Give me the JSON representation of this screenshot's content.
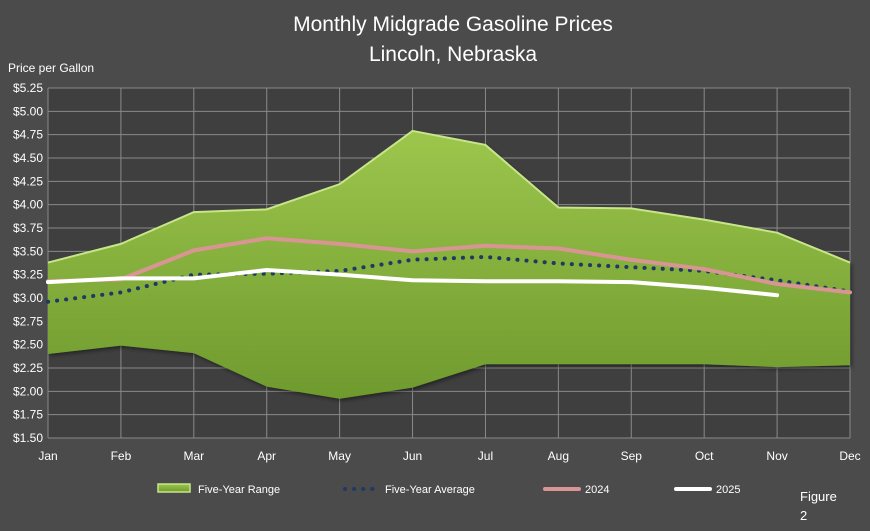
{
  "chart_data": {
    "type": "area",
    "title": "Monthly Midgrade Gasoline Prices",
    "subtitle": "Lincoln, Nebraska",
    "ylabel": "Price per Gallon",
    "xlabel": "",
    "ylim": [
      1.5,
      5.25
    ],
    "y_ticks": [
      "$1.50",
      "$1.75",
      "$2.00",
      "$2.25",
      "$2.50",
      "$2.75",
      "$3.00",
      "$3.25",
      "$3.50",
      "$3.75",
      "$4.00",
      "$4.25",
      "$4.50",
      "$4.75",
      "$5.00",
      "$5.25"
    ],
    "categories": [
      "Jan",
      "Feb",
      "Mar",
      "Apr",
      "May",
      "Jun",
      "Jul",
      "Aug",
      "Sep",
      "Oct",
      "Nov",
      "Dec"
    ],
    "grid": true,
    "legend_position": "bottom",
    "series": [
      {
        "name": "Five-Year Range",
        "kind": "range",
        "color": "#8ab43e",
        "low": [
          2.4,
          2.49,
          2.41,
          2.05,
          1.92,
          2.04,
          2.29,
          2.29,
          2.29,
          2.29,
          2.26,
          2.28
        ],
        "high": [
          3.38,
          3.58,
          3.92,
          3.95,
          4.22,
          4.79,
          4.64,
          3.97,
          3.96,
          3.84,
          3.7,
          3.38
        ]
      },
      {
        "name": "Five-Year Average",
        "kind": "dotted",
        "color": "#1f3864",
        "values": [
          2.96,
          3.06,
          3.25,
          3.26,
          3.29,
          3.41,
          3.44,
          3.37,
          3.33,
          3.29,
          3.19,
          3.07
        ]
      },
      {
        "name": "2024",
        "kind": "line",
        "color": "#d99594",
        "values": [
          3.18,
          3.2,
          3.51,
          3.64,
          3.58,
          3.5,
          3.56,
          3.53,
          3.41,
          3.31,
          3.15,
          3.06
        ]
      },
      {
        "name": "2025",
        "kind": "line",
        "color": "#ffffff",
        "values": [
          3.17,
          3.21,
          3.21,
          3.3,
          3.25,
          3.19,
          3.18,
          3.18,
          3.17,
          3.11,
          3.03,
          null
        ]
      }
    ]
  },
  "figure_label": "Figure 2",
  "colors": {
    "background": "#4b4b4b",
    "plot_background": "#3f3f3f",
    "gridline": "#8a8a8a"
  }
}
